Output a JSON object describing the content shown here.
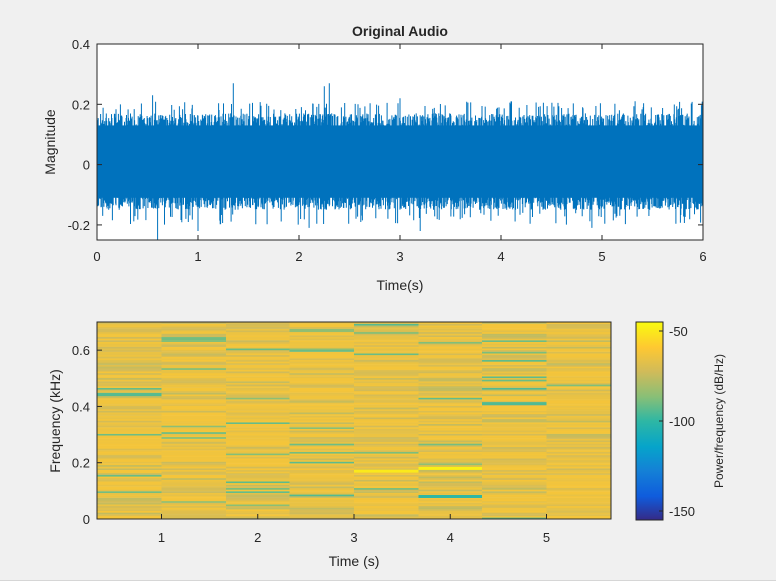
{
  "chart_data": [
    {
      "type": "line",
      "title": "Original Audio",
      "xlabel": "Time(s)",
      "ylabel": "Magnitude",
      "xlim": [
        0,
        6
      ],
      "ylim": [
        -0.25,
        0.4
      ],
      "xticks": [
        "0",
        "1",
        "2",
        "3",
        "4",
        "5",
        "6"
      ],
      "yticks": [
        "-0.2",
        "0",
        "0.2",
        "0.4"
      ],
      "series": [
        {
          "color": "#0072bd",
          "description_stats": {
            "envelope_typical_upper": 0.17,
            "envelope_typical_lower": -0.15,
            "peaks_upper": [
              [
                0.55,
                0.23
              ],
              [
                1.35,
                0.27
              ],
              [
                2.25,
                0.26
              ],
              [
                2.3,
                0.27
              ],
              [
                3.0,
                0.22
              ],
              [
                4.1,
                0.21
              ]
            ],
            "peaks_lower": [
              [
                0.6,
                -0.25
              ],
              [
                1.0,
                -0.22
              ],
              [
                2.1,
                -0.21
              ],
              [
                3.2,
                -0.22
              ],
              [
                4.9,
                -0.21
              ]
            ]
          }
        }
      ]
    },
    {
      "type": "heatmap",
      "title": "",
      "xlabel": "Time (s)",
      "ylabel": "Frequency (kHz)",
      "xlim": [
        0.33,
        5.67
      ],
      "ylim": [
        0,
        0.7
      ],
      "xticks": [
        "1",
        "2",
        "3",
        "4",
        "5"
      ],
      "yticks": [
        "0",
        "0.2",
        "0.4",
        "0.6"
      ],
      "colorbar": {
        "label": "Power/frequency (dB/Hz)",
        "range": [
          -155,
          -45
        ],
        "ticks": [
          "-50",
          "-100",
          "-150"
        ],
        "colormap": "parula"
      },
      "segments": [
        0.33,
        1.0,
        1.67,
        2.33,
        3.0,
        3.67,
        4.33,
        5.0,
        5.67
      ],
      "highlights": [
        {
          "segment": 2,
          "freq": 0.64,
          "power": -90
        },
        {
          "segment": 4,
          "freq": 0.67,
          "power": -85
        },
        {
          "segment": 7,
          "freq": 0.41,
          "power": -95
        },
        {
          "segment": 6,
          "freq": 0.08,
          "power": -100
        },
        {
          "segment": 6,
          "freq": 0.18,
          "power": -48
        },
        {
          "segment": 5,
          "freq": 0.17,
          "power": -50
        }
      ]
    }
  ]
}
